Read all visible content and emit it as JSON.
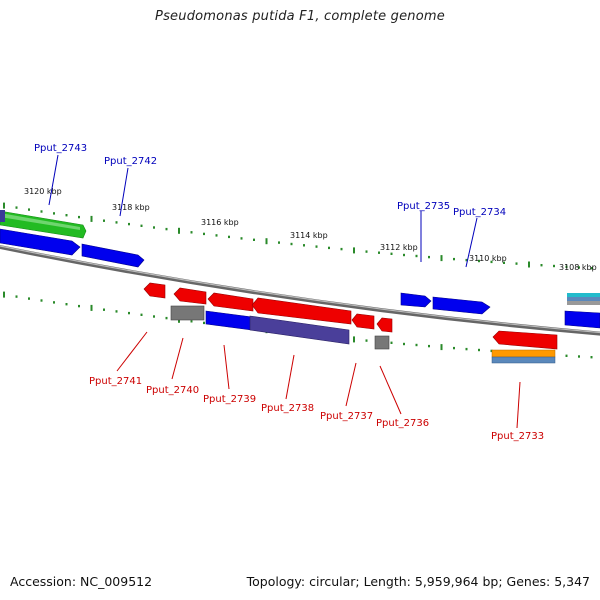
{
  "title": "Pseudomonas putida F1, complete genome",
  "footer": {
    "accession": "Accession: NC_009512",
    "summary": "Topology: circular; Length: 5,959,964 bp; Genes: 5,347"
  },
  "colors": {
    "backbone": "#8a8a8a",
    "tick": "#2a8a2a",
    "forward_label": "#0000bb",
    "reverse_label": "#cc0000",
    "cds_blue": "#0000ee",
    "cds_red": "#ee0000",
    "cds_green": "#22bb22",
    "cds_gray": "#777777",
    "cds_purple": "#4a3f9a",
    "cds_orange": "#ff9900",
    "cds_teal": "#5a88bb",
    "cds_cyan": "#22bbcc"
  },
  "scale_labels": [
    "3120 kbp",
    "3118 kbp",
    "3116 kbp",
    "3114 kbp",
    "3112 kbp",
    "3110 kbp",
    "3108 kbp"
  ],
  "forward_gene_labels": [
    "Pput_2743",
    "Pput_2742",
    "Pput_2735",
    "Pput_2734"
  ],
  "reverse_gene_labels": [
    "Pput_2741",
    "Pput_2740",
    "Pput_2739",
    "Pput_2738",
    "Pput_2737",
    "Pput_2736",
    "Pput_2733"
  ]
}
